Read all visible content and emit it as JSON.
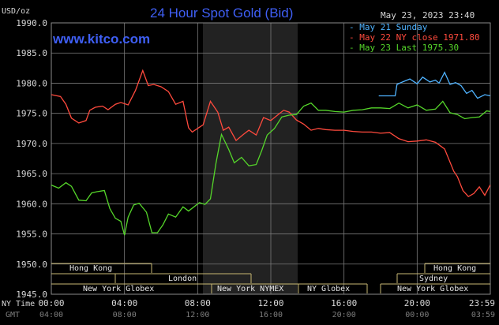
{
  "chart_data": {
    "type": "line",
    "title": "24 Hour Spot Gold (Bid)",
    "website": "www.kitco.com",
    "date_label": "May 23, 2023 23:40",
    "ylabel": "USD/oz",
    "ylim": [
      1945,
      1990
    ],
    "yticks": [
      "1990.0",
      "1985.0",
      "1980.0",
      "1975.0",
      "1970.0",
      "1965.0",
      "1960.0",
      "1955.0",
      "1950.0",
      "1945.0"
    ],
    "xlabel_ny": "NY Time",
    "xlabel_gmt": "GMT",
    "xticks_ny": [
      "00:00",
      "04:00",
      "08:00",
      "12:00",
      "16:00",
      "20:00",
      "23:59"
    ],
    "xticks_gmt": [
      "04:00",
      "08:00",
      "12:00",
      "16:00",
      "20:00",
      "00:00",
      "03:59"
    ],
    "legend": [
      "May 21 Sunday",
      "May 22 NY close 1971.80",
      "May 23 Last 1975.30"
    ],
    "colors": {
      "sunday": "#4fb3ff",
      "close": "#ff4a3d",
      "last": "#55d62a",
      "grid": "#7a7a7a",
      "session": "#c8b873",
      "shade": "#222222"
    },
    "sessions": {
      "hong_kong": "Hong Kong",
      "london": "London",
      "new_york_globex": "New York Globex",
      "new_york_nymex": "New York NYMEX",
      "ny_globex": "NY Globex",
      "sydney": "Sydney"
    },
    "series": [
      {
        "name": "May 21 Sunday",
        "x": [
          17.9,
          18.8,
          18.9,
          19.2,
          19.6,
          20,
          20.3,
          20.7,
          21,
          21.2,
          21.5,
          21.8,
          22.1,
          22.4,
          22.7,
          23,
          23.3,
          23.7,
          24
        ],
        "values": [
          1977.9,
          1977.9,
          1979.8,
          1980.2,
          1980.7,
          1979.9,
          1981,
          1980.2,
          1980.5,
          1980,
          1981.8,
          1979.8,
          1980.1,
          1979.6,
          1978.3,
          1978.8,
          1977.5,
          1978.1,
          1977.9
        ]
      },
      {
        "name": "May 22 NY close 1971.80",
        "x": [
          0,
          0.5,
          0.8,
          1.1,
          1.5,
          1.9,
          2.1,
          2.4,
          2.8,
          3.1,
          3.5,
          3.8,
          4.2,
          4.6,
          5,
          5.3,
          5.6,
          6,
          6.4,
          6.8,
          7.2,
          7.5,
          7.7,
          8,
          8.3,
          8.7,
          9.1,
          9.4,
          9.7,
          10.1,
          10.5,
          10.8,
          11.2,
          11.6,
          12,
          12.4,
          12.7,
          13,
          13.4,
          13.8,
          14.2,
          14.6,
          15,
          15.5,
          16,
          16.5,
          17,
          17.5,
          18,
          18.5,
          19,
          19.5,
          20,
          20.5,
          21,
          21.5,
          22,
          22.2,
          22.5,
          22.8,
          23.1,
          23.4,
          23.7,
          23.99
        ],
        "values": [
          1978.1,
          1977.8,
          1976.5,
          1974.2,
          1973.4,
          1973.8,
          1975.5,
          1976,
          1976.2,
          1975.6,
          1976.5,
          1976.8,
          1976.4,
          1978.8,
          1982.1,
          1979.6,
          1979.8,
          1979.4,
          1978.6,
          1976.5,
          1977,
          1972.6,
          1971.9,
          1972.5,
          1973.1,
          1977,
          1975.2,
          1972.2,
          1972.7,
          1970.5,
          1971.5,
          1972.2,
          1971.4,
          1974.3,
          1973.8,
          1974.8,
          1975.5,
          1975.2,
          1973.9,
          1973.2,
          1972.2,
          1972.5,
          1972.3,
          1972.2,
          1972.2,
          1972,
          1971.9,
          1971.9,
          1971.7,
          1971.8,
          1970.8,
          1970.3,
          1970.4,
          1970.6,
          1970.2,
          1969.1,
          1965.4,
          1964.5,
          1962.2,
          1961.2,
          1961.7,
          1962.8,
          1961.4,
          1963.1
        ]
      },
      {
        "name": "May 23 Last 1975.30",
        "x": [
          0,
          0.4,
          0.8,
          1.1,
          1.5,
          1.9,
          2.2,
          2.5,
          2.9,
          3.2,
          3.5,
          3.8,
          4,
          4.2,
          4.5,
          4.8,
          5.2,
          5.5,
          5.8,
          6.1,
          6.4,
          6.8,
          7.2,
          7.5,
          7.8,
          8.1,
          8.4,
          8.7,
          9,
          9.3,
          9.7,
          10,
          10.4,
          10.8,
          11.2,
          11.5,
          11.8,
          12.2,
          12.6,
          13,
          13.4,
          13.8,
          14.2,
          14.6,
          15,
          15.5,
          16,
          16.5,
          17,
          17.5,
          18,
          18.5,
          19,
          19.5,
          20,
          20.5,
          21,
          21.4,
          21.8,
          22.2,
          22.6,
          23,
          23.4,
          23.8,
          23.99
        ],
        "values": [
          1963.1,
          1962.6,
          1963.5,
          1962.9,
          1960.6,
          1960.5,
          1961.8,
          1962,
          1962.2,
          1959.2,
          1957.6,
          1957.1,
          1954.8,
          1957.8,
          1959.8,
          1960.1,
          1958.6,
          1955.2,
          1955.2,
          1956.5,
          1958.3,
          1957.8,
          1959.5,
          1958.8,
          1959.5,
          1960.2,
          1959.9,
          1960.8,
          1966.7,
          1971.5,
          1969,
          1966.8,
          1967.7,
          1966.3,
          1966.5,
          1968.8,
          1971.4,
          1972.5,
          1974.4,
          1974.7,
          1974.8,
          1976.2,
          1976.7,
          1975.5,
          1975.5,
          1975.3,
          1975.2,
          1975.5,
          1975.6,
          1975.9,
          1975.9,
          1975.8,
          1976.7,
          1975.9,
          1976.4,
          1975.5,
          1975.7,
          1977,
          1975.1,
          1974.8,
          1974.1,
          1974.3,
          1974.4,
          1975.4,
          1975.3
        ]
      }
    ]
  }
}
